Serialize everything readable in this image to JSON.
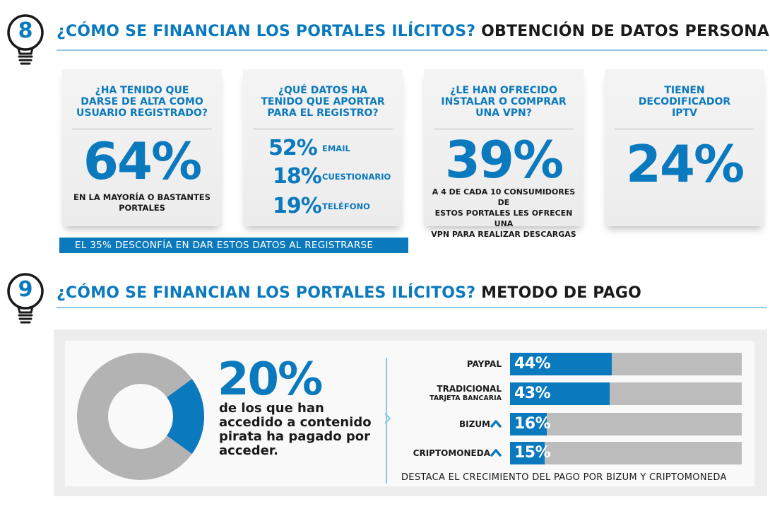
{
  "section8": {
    "number": "8",
    "title_question": "¿CÓMO SE FINANCIAN LOS PORTALES ILÍCITOS?",
    "title_topic": "OBTENCIÓN DE DATOS PERSONALES",
    "cards": [
      {
        "question_lines": [
          "¿HA TENIDO QUE",
          "DARSE DE ALTA COMO",
          "USUARIO REGISTRADO?"
        ],
        "value": "64%",
        "value_fraction": 0.64,
        "note_lines": [
          "EN LA MAYORÍA O BASTANTES",
          "PORTALES"
        ]
      },
      {
        "question_lines": [
          "¿QUÉ DATOS HA",
          "TENIDO QUE APORTAR",
          "PARA EL REGISTRO?"
        ],
        "rows": [
          {
            "value": "52%",
            "label": "EMAIL"
          },
          {
            "value": "18%",
            "label": "CUESTIONARIO"
          },
          {
            "value": "19%",
            "label": "TELÉFONO"
          }
        ]
      },
      {
        "question_lines": [
          "¿LE HAN OFRECIDO",
          "INSTALAR O COMPRAR",
          "UNA VPN?"
        ],
        "value": "39%",
        "note_lines": [
          "A 4 DE CADA 10 CONSUMIDORES DE",
          "ESTOS PORTALES LES OFRECEN UNA",
          "VPN PARA REALIZAR DESCARGAS"
        ]
      },
      {
        "question_lines": [
          "TIENEN",
          "DECODIFICADOR",
          "IPTV"
        ],
        "value": "24%"
      }
    ],
    "banner": "EL 35% DESCONFÍA EN DAR ESTOS DATOS AL REGISTRARSE"
  },
  "section9": {
    "number": "9",
    "title_question": "¿CÓMO SE FINANCIAN LOS PORTALES ILÍCITOS?",
    "title_topic": "METODO DE PAGO",
    "donut_value": "20%",
    "donut_fraction": 0.2,
    "donut_text_lines": [
      "de los que han",
      "accedido a contenido",
      "pirata ha pagado por",
      "acceder."
    ],
    "bars": [
      {
        "label": "PAYPAL",
        "sublabel": "",
        "value": "44%",
        "fraction": 0.44,
        "arrow": false
      },
      {
        "label": "TRADICIONAL",
        "sublabel": "TARJETA BANCARIA",
        "value": "43%",
        "fraction": 0.43,
        "arrow": false
      },
      {
        "label": "BIZUM",
        "sublabel": "",
        "value": "16%",
        "fraction": 0.16,
        "arrow": true
      },
      {
        "label": "CRIPTOMONEDA",
        "sublabel": "",
        "value": "15%",
        "fraction": 0.15,
        "arrow": true
      }
    ],
    "footer": "DESTACA EL CRECIMIENTO DEL PAGO POR BIZUM Y CRIPTOMONEDA"
  },
  "colors": {
    "accent": "#0b79bd",
    "track": "#bcbcbc",
    "donut_rest": "#b3b3b3"
  }
}
